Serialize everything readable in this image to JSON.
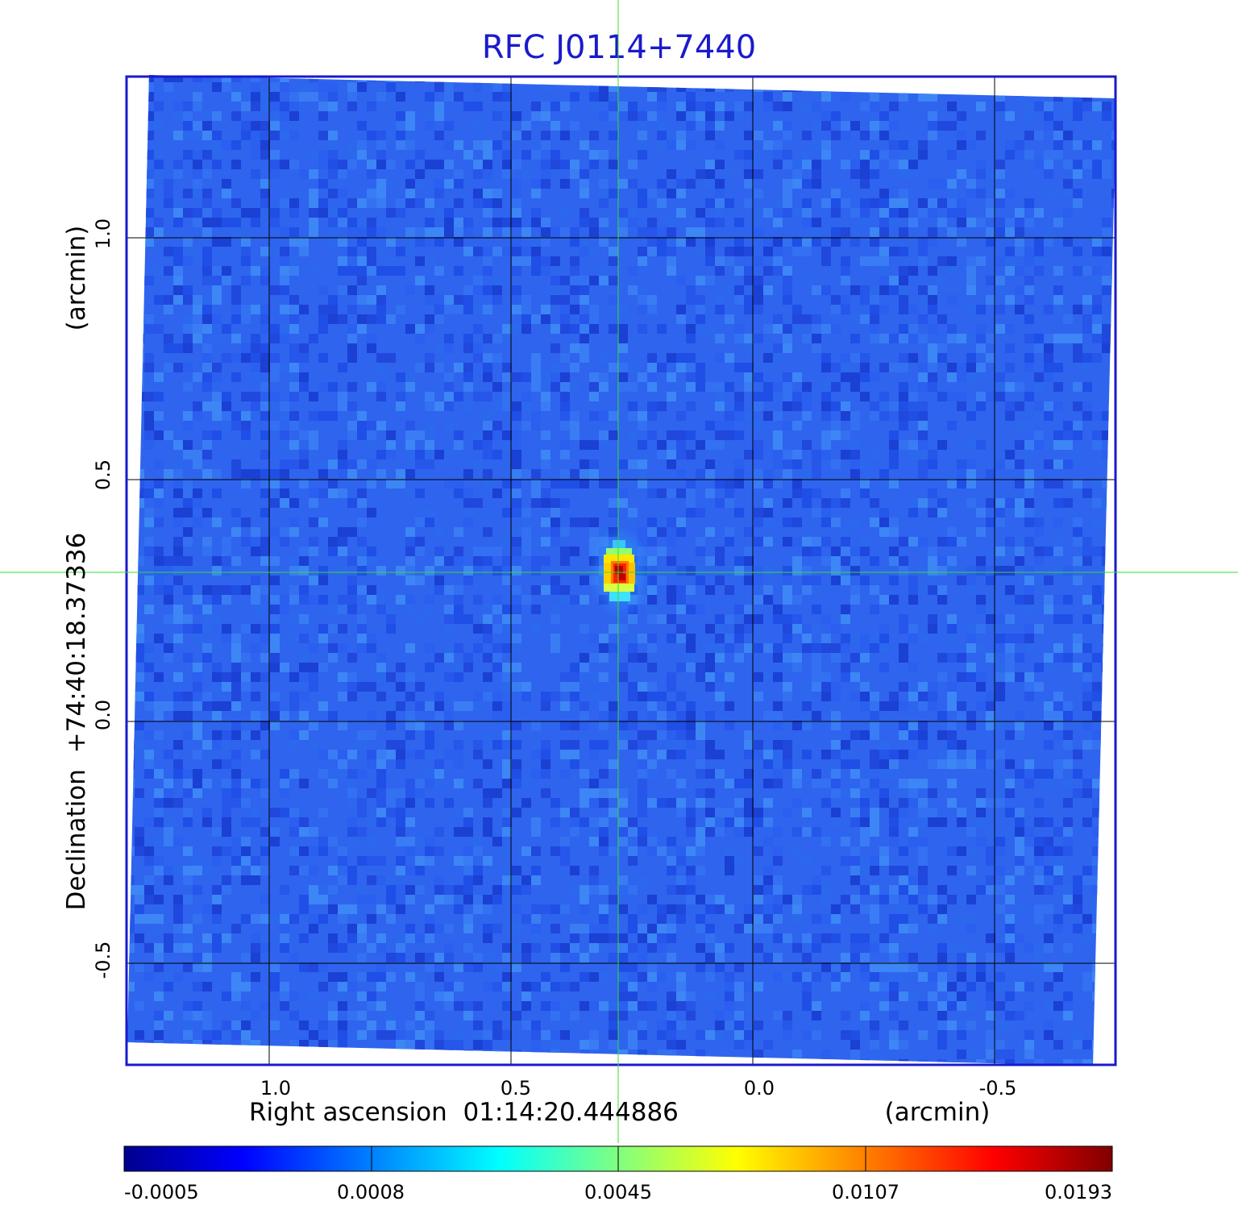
{
  "title": "RFC J0114+7440",
  "x_axis": {
    "label": "Right ascension  01:14:20.444886",
    "unit": "(arcmin)",
    "ticks": [
      "1.0",
      "0.5",
      "0.0",
      "-0.5"
    ]
  },
  "y_axis": {
    "label": "Declination  +74:40:18.37336",
    "unit": "(arcmin)",
    "ticks": [
      "1.0",
      "0.5",
      "0.0",
      "-0.5"
    ]
  },
  "colorbar": {
    "ticks": [
      "-0.0005",
      "0.0008",
      "0.0045",
      "0.0107",
      "0.0193"
    ],
    "stops": [
      "#00008f",
      "#0000ff",
      "#0080ff",
      "#00ffff",
      "#80ff80",
      "#ffff00",
      "#ff8000",
      "#ff0000",
      "#800000"
    ]
  },
  "colors": {
    "title": "#1a1acc",
    "frame": "#1a1acc",
    "crosshair": "#33dd33",
    "grid": "#000000",
    "background_map": "#2f64ee"
  }
}
